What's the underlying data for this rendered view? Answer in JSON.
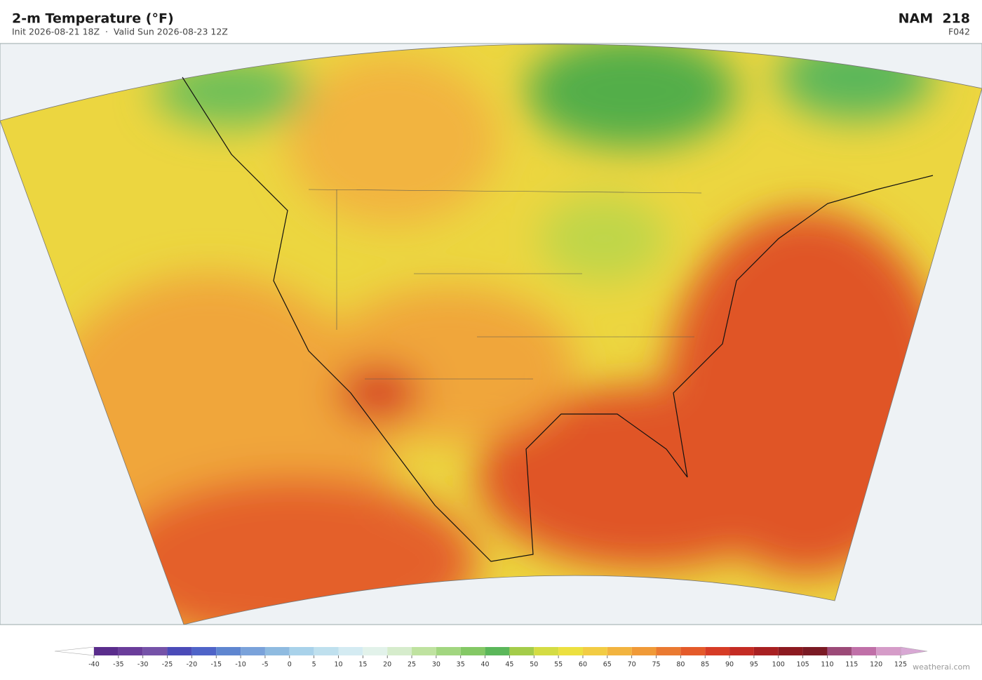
{
  "header": {
    "title": "2-m Temperature  (°F)",
    "subtitle": "Init 2026-08-21 18Z  ·  Valid Sun 2026-08-23 12Z",
    "model": "NAM  218",
    "forecast_hour": "F042"
  },
  "colorbar": {
    "ticks": [
      -40,
      -35,
      -30,
      -25,
      -20,
      -15,
      -10,
      -5,
      0,
      5,
      10,
      15,
      20,
      25,
      30,
      35,
      40,
      45,
      50,
      55,
      60,
      65,
      70,
      75,
      80,
      85,
      90,
      95,
      100,
      105,
      110,
      115,
      120,
      125
    ],
    "colors": [
      "#5a2d8c",
      "#6a3d9a",
      "#7552a8",
      "#4b4bb8",
      "#4f64c8",
      "#5f86d0",
      "#7aa2da",
      "#8fbbe0",
      "#a9d2ea",
      "#bfe0ee",
      "#d4ebf2",
      "#e2f2ea",
      "#d6eccc",
      "#bfe2a0",
      "#a2d680",
      "#84c865",
      "#5bb75a",
      "#a4cc4a",
      "#d4dc44",
      "#ece040",
      "#f2cc44",
      "#f2b440",
      "#f09a38",
      "#ea7a32",
      "#e45a2a",
      "#d63c26",
      "#c42c24",
      "#a82022",
      "#8c1a20",
      "#7a1a24",
      "#9c4a78",
      "#c070a8",
      "#d59cc8"
    ],
    "under_color": "#ffffff",
    "over_color": "#d8a8d4"
  },
  "watermark": "weatherai.com"
}
